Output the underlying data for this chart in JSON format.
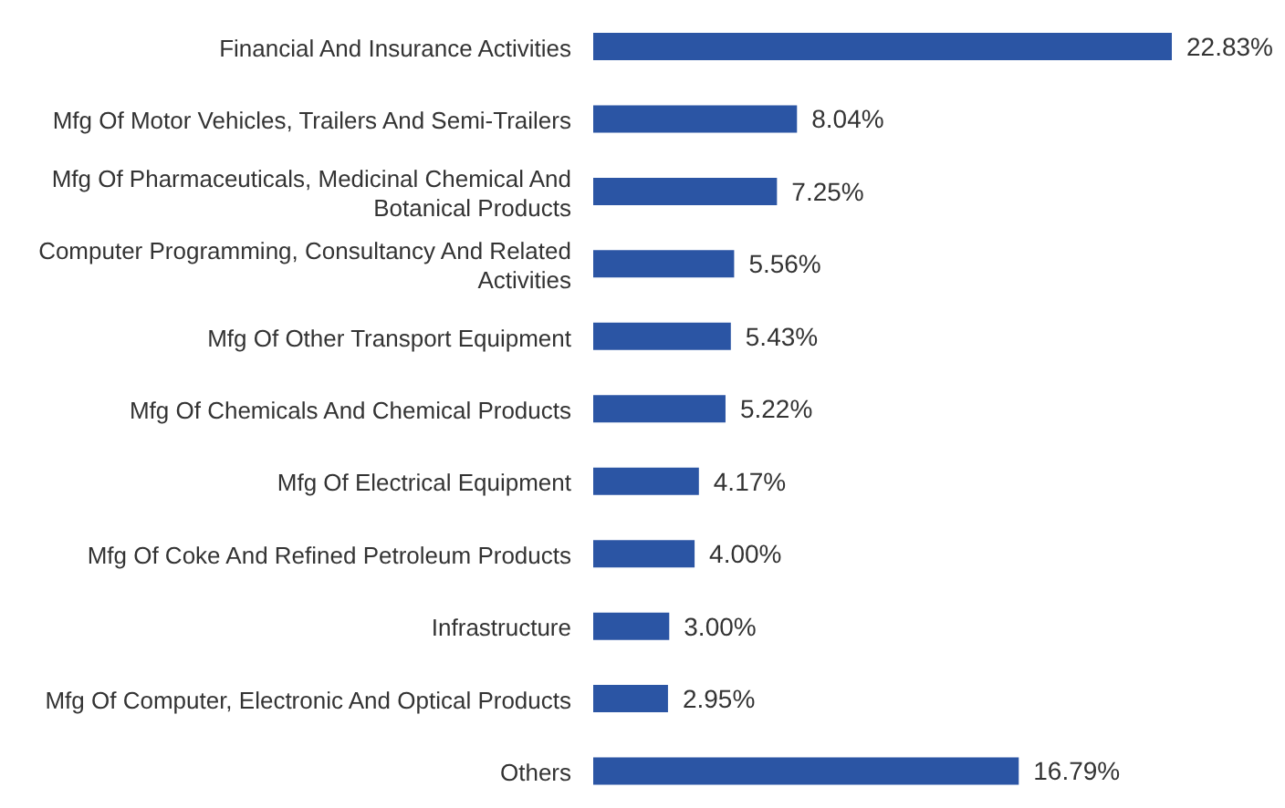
{
  "chart_data": {
    "type": "bar",
    "orientation": "horizontal",
    "categories": [
      "Financial And Insurance Activities",
      "Mfg Of Motor Vehicles, Trailers And Semi-Trailers",
      "Mfg Of Pharmaceuticals, Medicinal Chemical And Botanical Products",
      "Computer Programming, Consultancy And Related Activities",
      "Mfg Of Other Transport Equipment",
      "Mfg Of Chemicals And Chemical Products",
      "Mfg Of Electrical Equipment",
      "Mfg Of Coke And Refined Petroleum Products",
      "Infrastructure",
      "Mfg Of Computer, Electronic And Optical Products",
      "Others"
    ],
    "values": [
      22.83,
      8.04,
      7.25,
      5.56,
      5.43,
      5.22,
      4.17,
      4.0,
      3.0,
      2.95,
      16.79
    ],
    "value_labels": [
      "22.83%",
      "8.04%",
      "7.25%",
      "5.56%",
      "5.43%",
      "5.22%",
      "4.17%",
      "4.00%",
      "3.00%",
      "2.95%",
      "16.79%"
    ],
    "color": "#2b55a4"
  }
}
